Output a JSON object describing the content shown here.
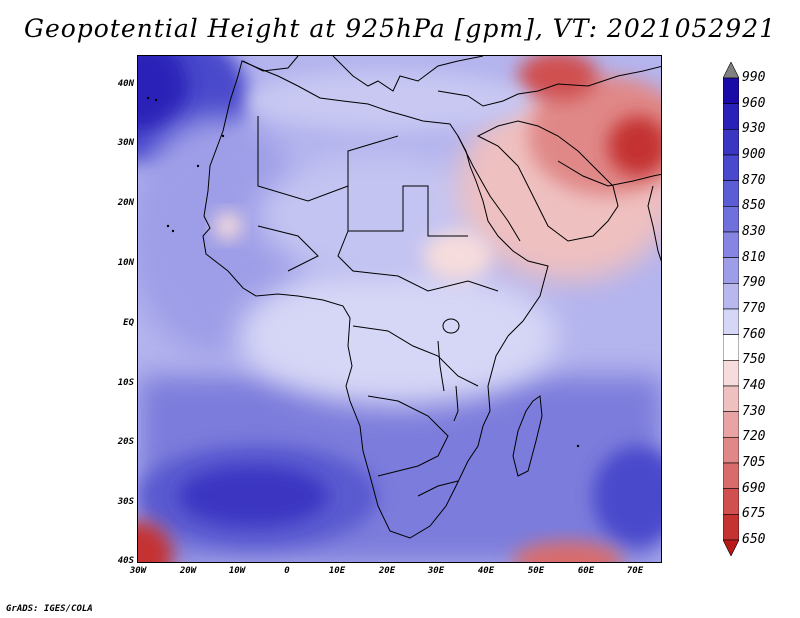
{
  "title": "Geopotential Height at 925hPa [gpm], VT: 2021052921",
  "credit": "GrADS: IGES/COLA",
  "latitude_labels": [
    "40N",
    "30N",
    "20N",
    "10N",
    "EQ",
    "10S",
    "20S",
    "30S",
    "40S"
  ],
  "longitude_labels": [
    "30W",
    "20W",
    "10W",
    "0",
    "10E",
    "20E",
    "30E",
    "40E",
    "50E",
    "60E",
    "70E"
  ],
  "colorbar": {
    "labels": [
      "990",
      "960",
      "930",
      "900",
      "870",
      "850",
      "830",
      "810",
      "790",
      "770",
      "760",
      "750",
      "740",
      "730",
      "720",
      "705",
      "690",
      "675",
      "650"
    ],
    "colors": [
      "#808080",
      "#1a0aa8",
      "#2a22b8",
      "#3a36c2",
      "#4a48cc",
      "#5c5cd5",
      "#7070dc",
      "#8686e2",
      "#9e9ee8",
      "#b8b8ef",
      "#d6d6f6",
      "#ffffff",
      "#f6dcdc",
      "#efc0c0",
      "#e8a4a4",
      "#e08888",
      "#d86c6c",
      "#d05050",
      "#c43232",
      "#b81818"
    ]
  }
}
